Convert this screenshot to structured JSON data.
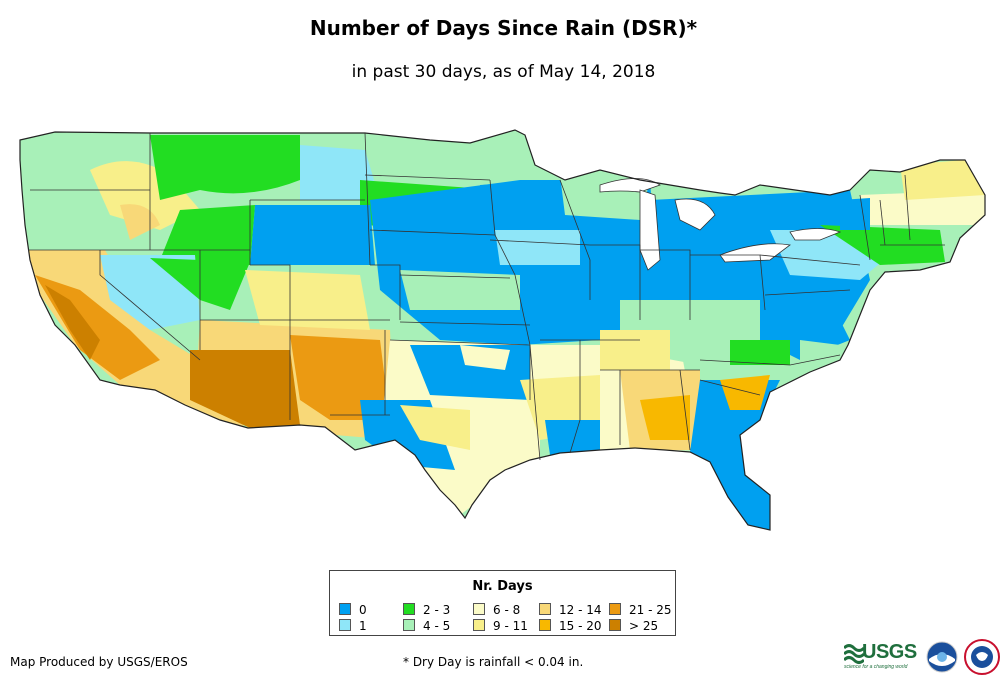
{
  "header": {
    "title": "Number of Days Since Rain (DSR)*",
    "subtitle": "in past 30 days, as of May 14, 2018"
  },
  "legend": {
    "title": "Nr. Days",
    "items": [
      {
        "label": "0",
        "color": "#00a0f0"
      },
      {
        "label": "1",
        "color": "#8fe6f8"
      },
      {
        "label": "2 - 3",
        "color": "#22dd22"
      },
      {
        "label": "4 - 5",
        "color": "#a8f0b8"
      },
      {
        "label": "6 - 8",
        "color": "#fbfbc8"
      },
      {
        "label": "9 - 11",
        "color": "#f8ef8a"
      },
      {
        "label": "12 - 14",
        "color": "#f8d878"
      },
      {
        "label": "15 - 20",
        "color": "#f8b800"
      },
      {
        "label": "21 - 25",
        "color": "#eb9a12"
      },
      {
        "label": "> 25",
        "color": "#cc8000"
      }
    ]
  },
  "footer": {
    "produced_by": "Map Produced by USGS/EROS",
    "note": "* Dry Day is rainfall < 0.04 in."
  },
  "logos": {
    "usgs": "USGS",
    "usgs_tagline": "science for a changing world",
    "noaa_icon": "noaa-logo-icon",
    "nws_icon": "nws-logo-icon"
  }
}
